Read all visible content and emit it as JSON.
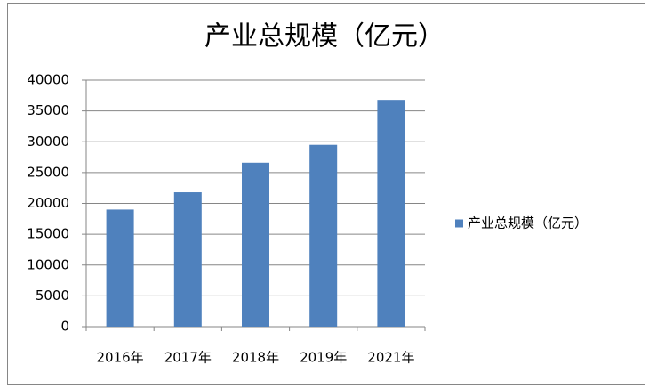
{
  "chart_data": {
    "type": "bar",
    "title": "产业总规模（亿元）",
    "categories": [
      "2016年",
      "2017年",
      "2018年",
      "2019年",
      "2021年"
    ],
    "series": [
      {
        "name": "产业总规模（亿元）",
        "color": "#4f81bd",
        "values": [
          19000,
          21800,
          26600,
          29500,
          36800
        ]
      }
    ],
    "ylim": [
      0,
      40000
    ],
    "yticks": [
      0,
      5000,
      10000,
      15000,
      20000,
      25000,
      30000,
      35000,
      40000
    ],
    "grid": true,
    "legend": "right"
  }
}
